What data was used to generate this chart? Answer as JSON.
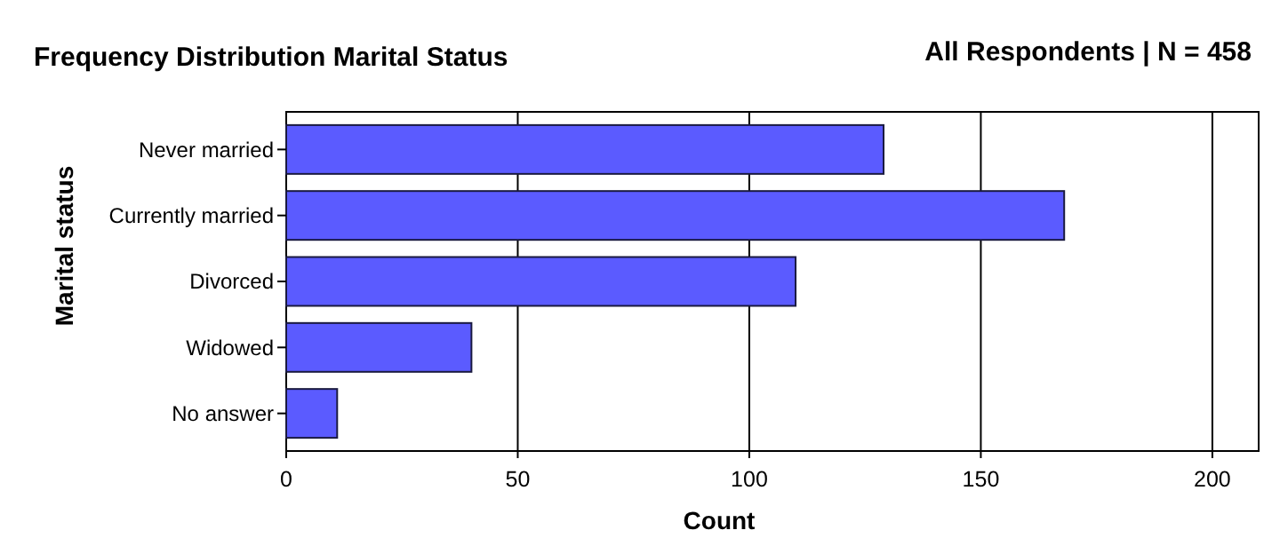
{
  "chart_data": {
    "type": "bar",
    "orientation": "horizontal",
    "title": "Frequency Distribution Marital Status",
    "subtitle": "All Respondents | N = 458",
    "xlabel": "Count",
    "ylabel": "Marital status",
    "categories": [
      "Never married",
      "Currently married",
      "Divorced",
      "Widowed",
      "No answer"
    ],
    "values": [
      129,
      168,
      110,
      40,
      11
    ],
    "color": "#5b5bff",
    "xlim": [
      0,
      210
    ],
    "xticks": [
      0,
      50,
      100,
      150,
      200
    ],
    "grid": "x"
  }
}
